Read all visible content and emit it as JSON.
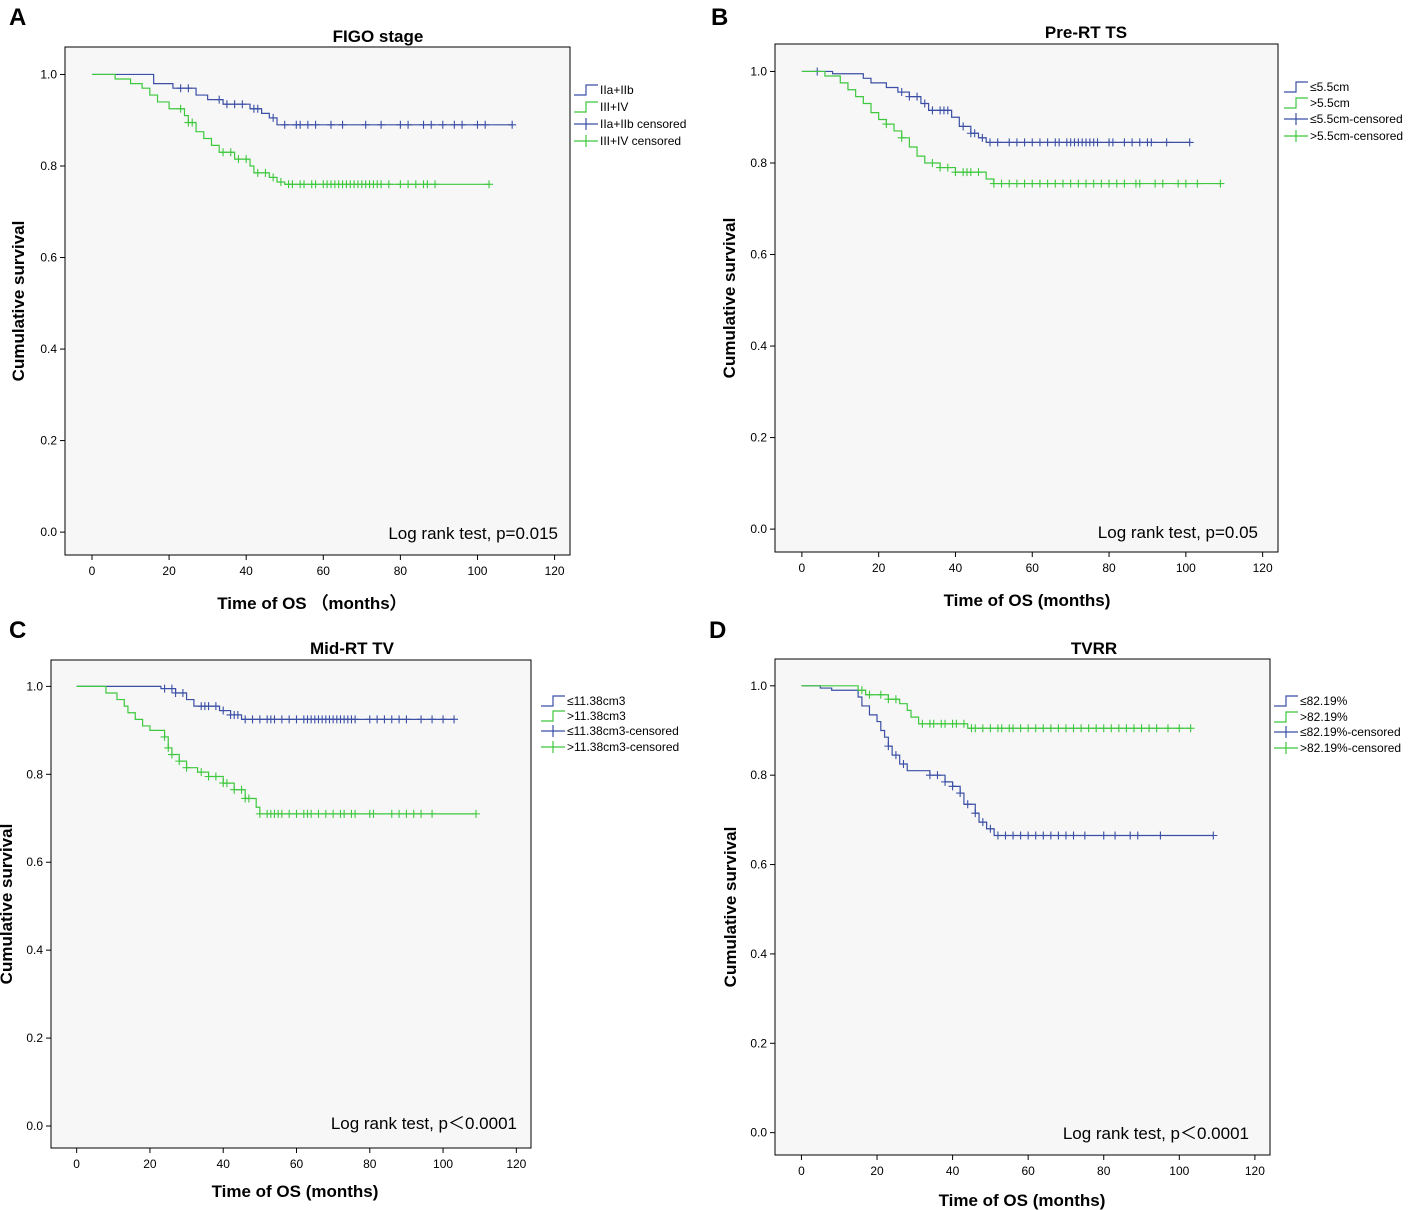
{
  "figure": {
    "colors": {
      "group1": "#3b4fa6",
      "group2": "#3ec83e",
      "frame_bg": "#f7f7f7"
    }
  },
  "chart_data": [
    {
      "panel": "A",
      "type": "line",
      "subtype": "kaplan-meier",
      "title": "FIGO stage",
      "xlabel": "Time of OS （months）",
      "ylabel": "Cumulative survival",
      "xlim": [
        -7,
        124
      ],
      "ylim": [
        -0.05,
        1.06
      ],
      "xticks": [
        0,
        20,
        40,
        60,
        80,
        100,
        120
      ],
      "yticks": [
        0.0,
        0.2,
        0.4,
        0.6,
        0.8,
        1.0
      ],
      "ytick_labels": [
        "0.0",
        "0.2",
        "0.4",
        "0.6",
        "0.8",
        "1.0"
      ],
      "annotation": "Log rank test, p=0.015",
      "legend": [
        "IIa+IIb",
        "III+IV",
        "IIa+IIb censored",
        "III+IV censored"
      ],
      "series": [
        {
          "name": "IIa+IIb",
          "steps": [
            [
              0,
              1.0
            ],
            [
              16,
              0.98
            ],
            [
              21,
              0.97
            ],
            [
              27,
              0.955
            ],
            [
              30,
              0.945
            ],
            [
              34,
              0.935
            ],
            [
              41,
              0.925
            ],
            [
              44,
              0.915
            ],
            [
              46,
              0.905
            ],
            [
              48,
              0.89
            ],
            [
              109,
              0.89
            ]
          ],
          "censored": [
            23,
            25,
            33,
            35,
            37,
            39,
            42,
            43,
            47,
            50,
            53,
            54,
            56,
            58,
            62,
            65,
            71,
            75,
            80,
            82,
            86,
            88,
            91,
            94,
            96,
            100,
            102,
            109
          ]
        },
        {
          "name": "III+IV",
          "steps": [
            [
              0,
              1.0
            ],
            [
              6,
              0.99
            ],
            [
              10,
              0.98
            ],
            [
              13,
              0.97
            ],
            [
              15,
              0.955
            ],
            [
              17,
              0.94
            ],
            [
              20,
              0.925
            ],
            [
              24,
              0.91
            ],
            [
              25,
              0.895
            ],
            [
              27,
              0.875
            ],
            [
              29,
              0.86
            ],
            [
              31,
              0.845
            ],
            [
              33,
              0.83
            ],
            [
              37,
              0.815
            ],
            [
              41,
              0.8
            ],
            [
              42,
              0.785
            ],
            [
              46,
              0.775
            ],
            [
              48,
              0.765
            ],
            [
              50,
              0.76
            ],
            [
              103,
              0.76
            ]
          ],
          "censored": [
            23,
            25,
            26,
            34,
            36,
            38,
            40,
            43,
            45,
            47,
            49,
            51,
            52,
            54,
            55,
            57,
            58,
            60,
            61,
            62,
            63,
            64,
            65,
            66,
            67,
            68,
            69,
            70,
            71,
            72,
            73,
            74,
            75,
            77,
            80,
            82,
            84,
            86,
            87,
            89,
            103
          ]
        }
      ]
    },
    {
      "panel": "B",
      "type": "line",
      "subtype": "kaplan-meier",
      "title": "Pre-RT TS",
      "xlabel": "Time of OS (months)",
      "ylabel": "Cumulative survival",
      "xlim": [
        -7,
        124
      ],
      "ylim": [
        -0.05,
        1.06
      ],
      "xticks": [
        0,
        20,
        40,
        60,
        80,
        100,
        120
      ],
      "yticks": [
        0.0,
        0.2,
        0.4,
        0.6,
        0.8,
        1.0
      ],
      "ytick_labels": [
        "0.0",
        "0.2",
        "0.4",
        "0.6",
        "0.8",
        "1.0"
      ],
      "annotation": "Log rank test, p=0.05",
      "legend": [
        "≤5.5cm",
        ">5.5cm",
        "≤5.5cm-censored",
        ">5.5cm-censored"
      ],
      "series": [
        {
          "name": "≤5.5cm",
          "steps": [
            [
              0,
              1.0
            ],
            [
              8,
              0.995
            ],
            [
              16,
              0.985
            ],
            [
              18,
              0.975
            ],
            [
              22,
              0.965
            ],
            [
              25,
              0.955
            ],
            [
              28,
              0.945
            ],
            [
              31,
              0.93
            ],
            [
              33,
              0.915
            ],
            [
              39,
              0.9
            ],
            [
              41,
              0.88
            ],
            [
              44,
              0.865
            ],
            [
              46,
              0.855
            ],
            [
              48,
              0.845
            ],
            [
              101,
              0.845
            ]
          ],
          "censored": [
            4,
            26,
            28,
            30,
            32,
            34,
            36,
            37,
            38,
            42,
            44,
            45,
            47,
            49,
            51,
            54,
            56,
            58,
            60,
            62,
            64,
            66,
            67,
            69,
            70,
            71,
            72,
            73,
            74,
            75,
            76,
            77,
            80,
            81,
            84,
            86,
            88,
            90,
            91,
            95,
            101
          ]
        },
        {
          "name": ">5.5cm",
          "steps": [
            [
              0,
              1.0
            ],
            [
              6,
              0.99
            ],
            [
              10,
              0.975
            ],
            [
              12,
              0.96
            ],
            [
              14,
              0.945
            ],
            [
              16,
              0.93
            ],
            [
              18,
              0.91
            ],
            [
              20,
              0.895
            ],
            [
              22,
              0.885
            ],
            [
              24,
              0.87
            ],
            [
              26,
              0.855
            ],
            [
              28,
              0.835
            ],
            [
              30,
              0.815
            ],
            [
              32,
              0.8
            ],
            [
              36,
              0.79
            ],
            [
              40,
              0.78
            ],
            [
              48,
              0.765
            ],
            [
              50,
              0.755
            ],
            [
              109,
              0.755
            ]
          ],
          "censored": [
            22,
            26,
            34,
            36,
            38,
            40,
            42,
            43,
            44,
            46,
            50,
            52,
            54,
            56,
            58,
            60,
            62,
            64,
            66,
            68,
            70,
            72,
            74,
            76,
            78,
            80,
            82,
            84,
            87,
            88,
            92,
            94,
            98,
            100,
            103,
            109
          ]
        }
      ]
    },
    {
      "panel": "C",
      "type": "line",
      "subtype": "kaplan-meier",
      "title": "Mid-RT TV",
      "xlabel": "Time of OS (months)",
      "ylabel": "Cumulative survival",
      "xlim": [
        -7,
        124
      ],
      "ylim": [
        -0.05,
        1.06
      ],
      "xticks": [
        0,
        20,
        40,
        60,
        80,
        100,
        120
      ],
      "yticks": [
        0.0,
        0.2,
        0.4,
        0.6,
        0.8,
        1.0
      ],
      "ytick_labels": [
        "0.0",
        "0.2",
        "0.4",
        "0.6",
        "0.8",
        "1.0"
      ],
      "annotation": "Log rank test, p＜0.0001",
      "legend": [
        "≤11.38cm3",
        ">11.38cm3",
        "≤11.38cm3-censored",
        ">11.38cm3-censored"
      ],
      "series": [
        {
          "name": "≤11.38cm3",
          "steps": [
            [
              0,
              1.0
            ],
            [
              23,
              0.995
            ],
            [
              27,
              0.985
            ],
            [
              30,
              0.97
            ],
            [
              32,
              0.955
            ],
            [
              39,
              0.945
            ],
            [
              42,
              0.935
            ],
            [
              45,
              0.925
            ],
            [
              103,
              0.925
            ]
          ],
          "censored": [
            24,
            26,
            27,
            29,
            34,
            35,
            36,
            38,
            40,
            42,
            43,
            44,
            46,
            48,
            50,
            52,
            53,
            54,
            56,
            58,
            60,
            62,
            63,
            64,
            65,
            66,
            67,
            68,
            69,
            70,
            71,
            72,
            73,
            74,
            75,
            76,
            80,
            82,
            84,
            86,
            88,
            90,
            94,
            97,
            100,
            103
          ]
        },
        {
          "name": ">11.38cm3",
          "steps": [
            [
              0,
              1.0
            ],
            [
              8,
              0.985
            ],
            [
              11,
              0.97
            ],
            [
              13,
              0.955
            ],
            [
              14,
              0.94
            ],
            [
              16,
              0.925
            ],
            [
              18,
              0.91
            ],
            [
              20,
              0.9
            ],
            [
              24,
              0.885
            ],
            [
              25,
              0.86
            ],
            [
              26,
              0.845
            ],
            [
              28,
              0.83
            ],
            [
              30,
              0.815
            ],
            [
              33,
              0.805
            ],
            [
              36,
              0.795
            ],
            [
              40,
              0.78
            ],
            [
              43,
              0.765
            ],
            [
              46,
              0.745
            ],
            [
              49,
              0.725
            ],
            [
              50,
              0.71
            ],
            [
              109,
              0.71
            ]
          ],
          "censored": [
            24,
            25,
            26,
            28,
            30,
            34,
            36,
            38,
            40,
            41,
            43,
            45,
            46,
            47,
            50,
            52,
            53,
            54,
            55,
            56,
            58,
            60,
            62,
            63,
            64,
            66,
            68,
            70,
            72,
            73,
            75,
            76,
            80,
            81,
            86,
            88,
            90,
            92,
            94,
            97,
            109
          ]
        }
      ]
    },
    {
      "panel": "D",
      "type": "line",
      "subtype": "kaplan-meier",
      "title": "TVRR",
      "xlabel": "Time of OS (months)",
      "ylabel": "Cumulative survival",
      "xlim": [
        -7,
        124
      ],
      "ylim": [
        -0.05,
        1.06
      ],
      "xticks": [
        0,
        20,
        40,
        60,
        80,
        100,
        120
      ],
      "yticks": [
        0.0,
        0.2,
        0.4,
        0.6,
        0.8,
        1.0
      ],
      "ytick_labels": [
        "0.0",
        "0.2",
        "0.4",
        "0.6",
        "0.8",
        "1.0"
      ],
      "annotation": "Log rank test, p＜0.0001",
      "legend": [
        "≤82.19%",
        ">82.19%",
        "≤82.19%-censored",
        ">82.19%-censored"
      ],
      "series": [
        {
          "name": "≤82.19%",
          "steps": [
            [
              0,
              1.0
            ],
            [
              5,
              0.995
            ],
            [
              8,
              0.99
            ],
            [
              15,
              0.975
            ],
            [
              16,
              0.955
            ],
            [
              18,
              0.935
            ],
            [
              20,
              0.92
            ],
            [
              21,
              0.9
            ],
            [
              22,
              0.885
            ],
            [
              23,
              0.865
            ],
            [
              24,
              0.845
            ],
            [
              26,
              0.825
            ],
            [
              28,
              0.81
            ],
            [
              34,
              0.8
            ],
            [
              38,
              0.785
            ],
            [
              40,
              0.775
            ],
            [
              42,
              0.76
            ],
            [
              43,
              0.735
            ],
            [
              46,
              0.715
            ],
            [
              47,
              0.695
            ],
            [
              49,
              0.68
            ],
            [
              51,
              0.665
            ],
            [
              109,
              0.665
            ]
          ],
          "censored": [
            23,
            25,
            27,
            34,
            36,
            38,
            40,
            42,
            44,
            46,
            48,
            50,
            52,
            54,
            56,
            58,
            60,
            62,
            64,
            66,
            68,
            70,
            72,
            75,
            80,
            83,
            87,
            89,
            95,
            109
          ]
        },
        {
          "name": ">82.19%",
          "steps": [
            [
              0,
              1.0
            ],
            [
              15,
              0.99
            ],
            [
              17,
              0.98
            ],
            [
              23,
              0.97
            ],
            [
              26,
              0.96
            ],
            [
              28,
              0.945
            ],
            [
              29,
              0.93
            ],
            [
              31,
              0.915
            ],
            [
              44,
              0.905
            ],
            [
              103,
              0.905
            ]
          ],
          "censored": [
            16,
            18,
            21,
            23,
            25,
            32,
            34,
            35,
            37,
            38,
            40,
            41,
            43,
            45,
            46,
            48,
            50,
            52,
            53,
            55,
            56,
            58,
            60,
            62,
            64,
            66,
            68,
            70,
            72,
            74,
            76,
            78,
            80,
            82,
            84,
            86,
            88,
            90,
            92,
            94,
            97,
            100,
            103
          ]
        }
      ]
    }
  ]
}
